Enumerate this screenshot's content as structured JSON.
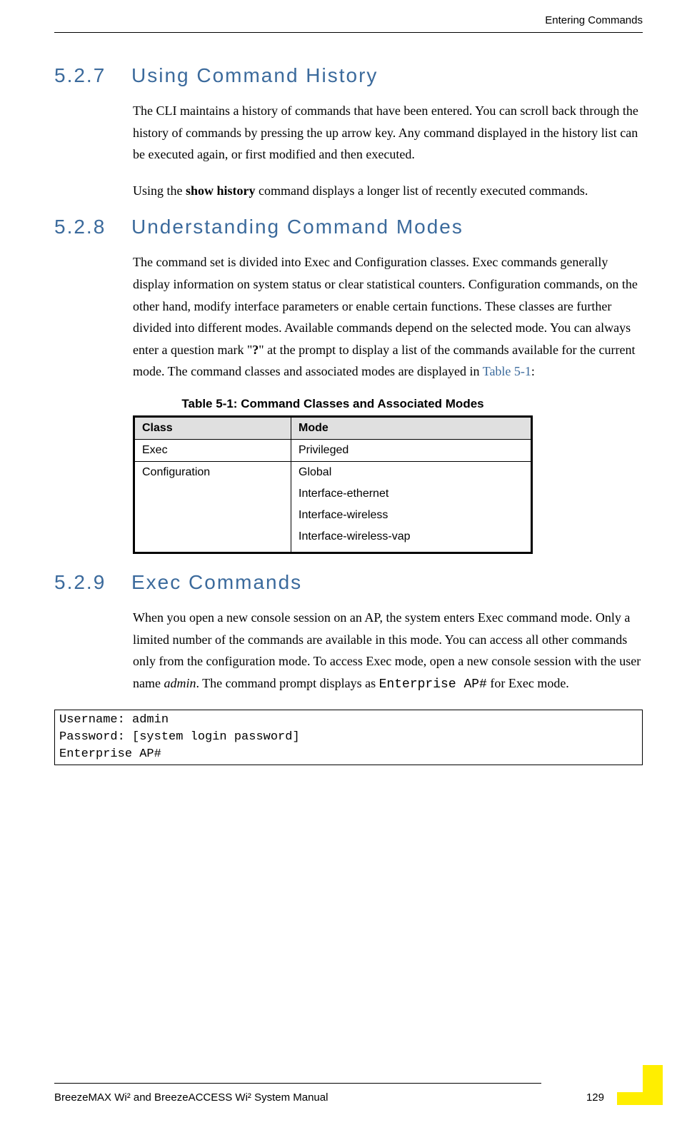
{
  "header": {
    "chapter": "Entering Commands"
  },
  "sections": [
    {
      "number": "5.2.7",
      "title": "Using Command History",
      "paragraphs": [
        {
          "html": "The CLI maintains a history of commands that have been entered. You can scroll back through the history of commands by pressing the up arrow key. Any command displayed in the history list can be executed again, or first modified and then executed."
        },
        {
          "html": "Using the <span class=\"bold\">show history</span> command displays a longer list of recently executed commands."
        }
      ]
    },
    {
      "number": "5.2.8",
      "title": "Understanding Command Modes",
      "paragraphs": [
        {
          "html": "The command set is divided into Exec and Configuration classes. Exec commands generally display information on system status or clear statistical counters. Configuration commands, on the other hand, modify interface parameters or enable certain functions. These classes are further divided into different modes. Available commands depend on the selected mode. You can always enter a question mark \"<span class=\"bold\">?</span>\" at the prompt to display a list of the commands available for the current mode. The command classes and associated modes are displayed in <span class=\"link\">Table 5-1</span>:"
        }
      ]
    },
    {
      "number": "5.2.9",
      "title": "Exec Commands",
      "paragraphs": [
        {
          "html": "When you open a new console session on an AP, the system enters Exec command mode. Only a limited number of the commands are available in this mode. You can access all other commands only from the configuration mode. To access Exec mode, open a new console session with the user name <span class=\"italic\">admin</span>. The command prompt displays as <span class=\"mono\">Enterprise AP#</span> for Exec mode."
        }
      ]
    }
  ],
  "table": {
    "caption": "Table 5-1: Command Classes and Associated Modes",
    "columns": [
      "Class",
      "Mode"
    ],
    "rows": [
      {
        "class": "Exec",
        "modes": [
          "Privileged"
        ]
      },
      {
        "class": "Configuration",
        "modes": [
          "Global",
          "Interface-ethernet",
          "Interface-wireless",
          "Interface-wireless-vap"
        ]
      }
    ]
  },
  "code_box": "Username: admin\nPassword: [system login password]\nEnterprise AP#",
  "footer": {
    "manual": "BreezeMAX Wi² and BreezeACCESS Wi² System Manual",
    "page": "129"
  }
}
